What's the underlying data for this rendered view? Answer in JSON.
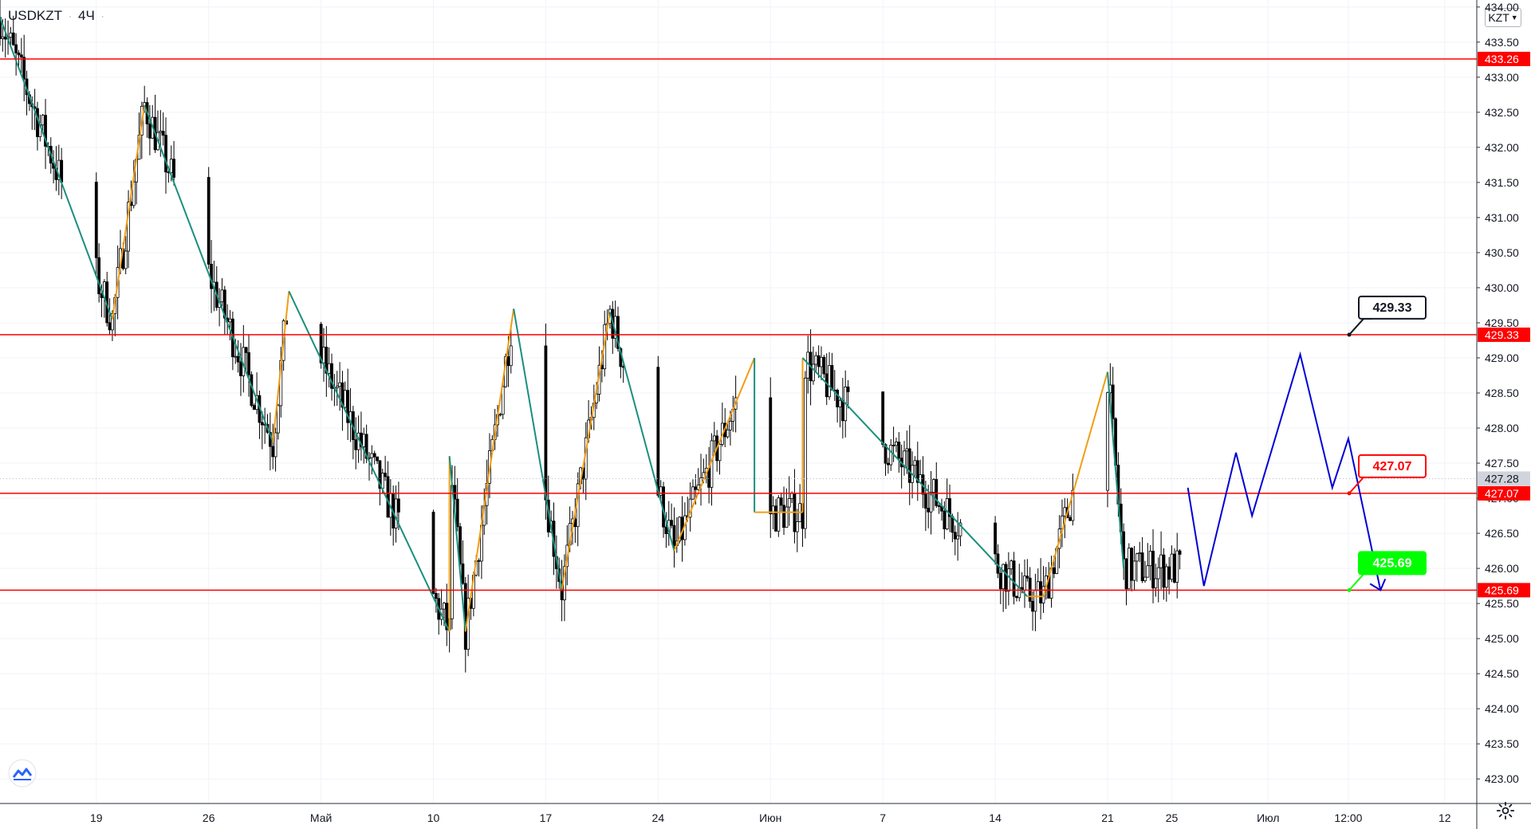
{
  "header": {
    "symbol": "USDKZT",
    "interval": "4Ч",
    "currency_button": "KZT"
  },
  "chart_data": {
    "type": "candlestick",
    "y_range": [
      422.65,
      434.1
    ],
    "y_ticks": [
      "434.00",
      "433.50",
      "433.00",
      "432.50",
      "432.00",
      "431.50",
      "431.00",
      "430.50",
      "430.00",
      "429.50",
      "429.00",
      "428.50",
      "428.00",
      "427.50",
      "427.00",
      "426.50",
      "426.00",
      "425.50",
      "425.00",
      "424.50",
      "424.00",
      "423.50",
      "423.00"
    ],
    "x_range": [
      "2021-04-13",
      "2021-07-14"
    ],
    "x_ticks": [
      {
        "label": "19",
        "date": "2021-04-19"
      },
      {
        "label": "26",
        "date": "2021-04-26"
      },
      {
        "label": "Май",
        "date": "2021-05-03"
      },
      {
        "label": "10",
        "date": "2021-05-10"
      },
      {
        "label": "17",
        "date": "2021-05-17"
      },
      {
        "label": "24",
        "date": "2021-05-24"
      },
      {
        "label": "Июн",
        "date": "2021-05-31"
      },
      {
        "label": "7",
        "date": "2021-06-07"
      },
      {
        "label": "14",
        "date": "2021-06-14"
      },
      {
        "label": "21",
        "date": "2021-06-21"
      },
      {
        "label": "25",
        "date": "2021-06-25"
      },
      {
        "label": "Июл",
        "date": "2021-07-01"
      },
      {
        "label": "12:00",
        "date": "2021-07-06"
      },
      {
        "label": "12",
        "date": "2021-07-12"
      }
    ],
    "last_price": "427.28",
    "horizontal_levels": [
      {
        "value": 433.26,
        "label": "433.26",
        "color": "#ff0000"
      },
      {
        "value": 429.33,
        "label": "429.33",
        "color": "#ff0000"
      },
      {
        "value": 427.07,
        "label": "427.07",
        "color": "#ff0000"
      },
      {
        "value": 425.69,
        "label": "425.69",
        "color": "#ff0000"
      }
    ],
    "callouts": [
      {
        "value": 429.33,
        "label": "429.33",
        "text_color": "#131722",
        "border_color": "#131722",
        "fill": "#ffffff"
      },
      {
        "value": 427.07,
        "label": "427.07",
        "text_color": "#ff0000",
        "border_color": "#ff0000",
        "fill": "#ffffff"
      },
      {
        "value": 425.69,
        "label": "425.69",
        "text_color": "#ffffff",
        "border_color": "#00ff00",
        "fill": "#00ff00"
      }
    ],
    "zigzag_points": [
      [
        "2021-04-13",
        433.85
      ],
      [
        "2021-04-20",
        429.55
      ],
      [
        "2021-04-22",
        432.6
      ],
      [
        "2021-04-30",
        427.8
      ],
      [
        "2021-05-01",
        429.95
      ],
      [
        "2021-05-11",
        425.1
      ],
      [
        "2021-05-11",
        427.6
      ],
      [
        "2021-05-12",
        425.1
      ],
      [
        "2021-05-15",
        429.7
      ],
      [
        "2021-05-18",
        425.7
      ],
      [
        "2021-05-21",
        429.65
      ],
      [
        "2021-05-25",
        426.25
      ],
      [
        "2021-05-30",
        429.0
      ],
      [
        "2021-05-30",
        426.8
      ],
      [
        "2021-06-02",
        426.8
      ],
      [
        "2021-06-02",
        429.0
      ],
      [
        "2021-06-16",
        425.6
      ],
      [
        "2021-06-17",
        425.6
      ],
      [
        "2021-06-21",
        428.8
      ],
      [
        "2021-06-22",
        426.0
      ]
    ],
    "forecast_path": [
      [
        "2021-06-26",
        427.15
      ],
      [
        "2021-06-27",
        425.75
      ],
      [
        "2021-06-29",
        427.65
      ],
      [
        "2021-06-30",
        426.75
      ],
      [
        "2021-07-03",
        429.05
      ],
      [
        "2021-07-05",
        427.15
      ],
      [
        "2021-07-06",
        427.85
      ],
      [
        "2021-07-08",
        425.69
      ]
    ],
    "colors": {
      "up": "#ffffff",
      "down": "#000000",
      "wick": "#000000",
      "zigzag_down": "#1a8f7e",
      "zigzag_up": "#f39c12",
      "forecast": "#0000d6",
      "grid": "#f0f3fa",
      "axis_text": "#131722"
    }
  }
}
